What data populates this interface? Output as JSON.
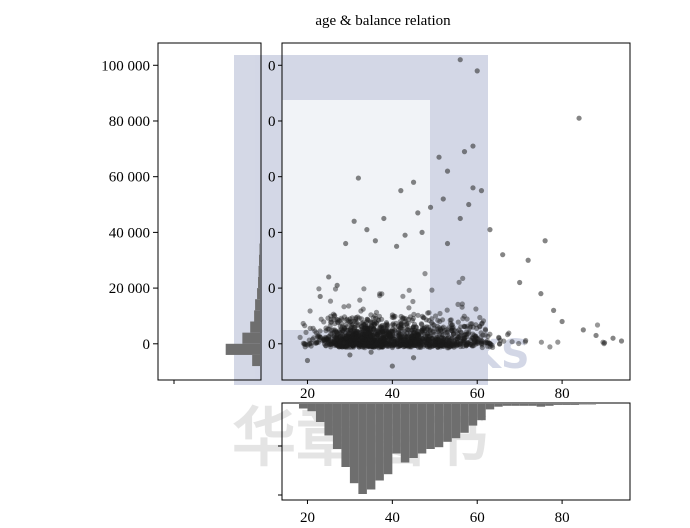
{
  "chart_data": {
    "title": "age & balance relation",
    "type": "scatter",
    "xlabel": "",
    "ylabel": "",
    "xlim": [
      14,
      96
    ],
    "ylim": [
      -13000,
      108000
    ],
    "x_ticks": [
      "20",
      "40",
      "60",
      "80"
    ],
    "y_ticks": [
      "100 000",
      "80 000",
      "60 000",
      "40 000",
      "20 000",
      "0"
    ],
    "scatter_y_ticks": [
      "0",
      "0",
      "0",
      "0",
      "0",
      "0"
    ],
    "scatter_outliers": [
      {
        "x": 56,
        "y": 102000
      },
      {
        "x": 60,
        "y": 98000
      },
      {
        "x": 84,
        "y": 81000
      },
      {
        "x": 59,
        "y": 71000
      },
      {
        "x": 57,
        "y": 69000
      },
      {
        "x": 51,
        "y": 67000
      },
      {
        "x": 32,
        "y": 59500
      },
      {
        "x": 45,
        "y": 58000
      },
      {
        "x": 59,
        "y": 56000
      },
      {
        "x": 53,
        "y": 62000
      },
      {
        "x": 52,
        "y": 52000
      },
      {
        "x": 58,
        "y": 50000
      },
      {
        "x": 42,
        "y": 55000
      },
      {
        "x": 61,
        "y": 55000
      },
      {
        "x": 49,
        "y": 49000
      },
      {
        "x": 56,
        "y": 45000
      },
      {
        "x": 38,
        "y": 45000
      },
      {
        "x": 46,
        "y": 47000
      },
      {
        "x": 31,
        "y": 44000
      },
      {
        "x": 63,
        "y": 41000
      },
      {
        "x": 34,
        "y": 41000
      },
      {
        "x": 43,
        "y": 39000
      },
      {
        "x": 47,
        "y": 40000
      },
      {
        "x": 36,
        "y": 37000
      },
      {
        "x": 41,
        "y": 35000
      },
      {
        "x": 53,
        "y": 36000
      },
      {
        "x": 29,
        "y": 36000
      },
      {
        "x": 76,
        "y": 37000
      },
      {
        "x": 66,
        "y": 32000
      },
      {
        "x": 72,
        "y": 30000
      },
      {
        "x": 85,
        "y": 5000
      },
      {
        "x": 88,
        "y": 3000
      },
      {
        "x": 92,
        "y": 2000
      },
      {
        "x": 94,
        "y": 1000
      },
      {
        "x": 90,
        "y": 400
      },
      {
        "x": 80,
        "y": 8000
      },
      {
        "x": 25,
        "y": 24000
      },
      {
        "x": 27,
        "y": 21000
      },
      {
        "x": 23,
        "y": 17000
      },
      {
        "x": 70,
        "y": 22000
      },
      {
        "x": 75,
        "y": 18000
      },
      {
        "x": 78,
        "y": 12000
      },
      {
        "x": 20,
        "y": -6000
      },
      {
        "x": 40,
        "y": -8000
      },
      {
        "x": 45,
        "y": -5000
      },
      {
        "x": 35,
        "y": -3000
      },
      {
        "x": 30,
        "y": -4000
      }
    ],
    "age_distribution": {
      "bins": [
        18,
        20,
        22,
        24,
        26,
        28,
        30,
        32,
        34,
        36,
        38,
        40,
        42,
        44,
        46,
        48,
        50,
        52,
        54,
        56,
        58,
        60,
        62,
        64,
        66,
        68,
        70,
        72,
        74,
        76,
        78,
        80,
        82,
        84,
        86,
        88,
        90,
        92,
        94
      ],
      "heights": [
        0.05,
        0.08,
        0.2,
        0.35,
        0.5,
        0.7,
        0.88,
        1.0,
        0.95,
        0.85,
        0.78,
        0.55,
        0.65,
        0.6,
        0.55,
        0.5,
        0.48,
        0.42,
        0.38,
        0.32,
        0.24,
        0.18,
        0.06,
        0.03,
        0.02,
        0.02,
        0.02,
        0.02,
        0.03,
        0.02,
        0.01,
        0.01,
        0.01,
        0.005,
        0.005,
        0.003,
        0.003,
        0.002,
        0.002
      ]
    },
    "balance_distribution": {
      "bins": [
        -8000,
        -4000,
        0,
        4000,
        8000,
        12000,
        16000,
        20000,
        24000,
        28000,
        32000
      ],
      "widths": [
        0.08,
        0.35,
        0.18,
        0.1,
        0.06,
        0.05,
        0.03,
        0.02,
        0.015,
        0.01,
        0.005
      ]
    }
  },
  "watermark": {
    "text": "HZ BOOKS",
    "cn": "华章图书"
  }
}
